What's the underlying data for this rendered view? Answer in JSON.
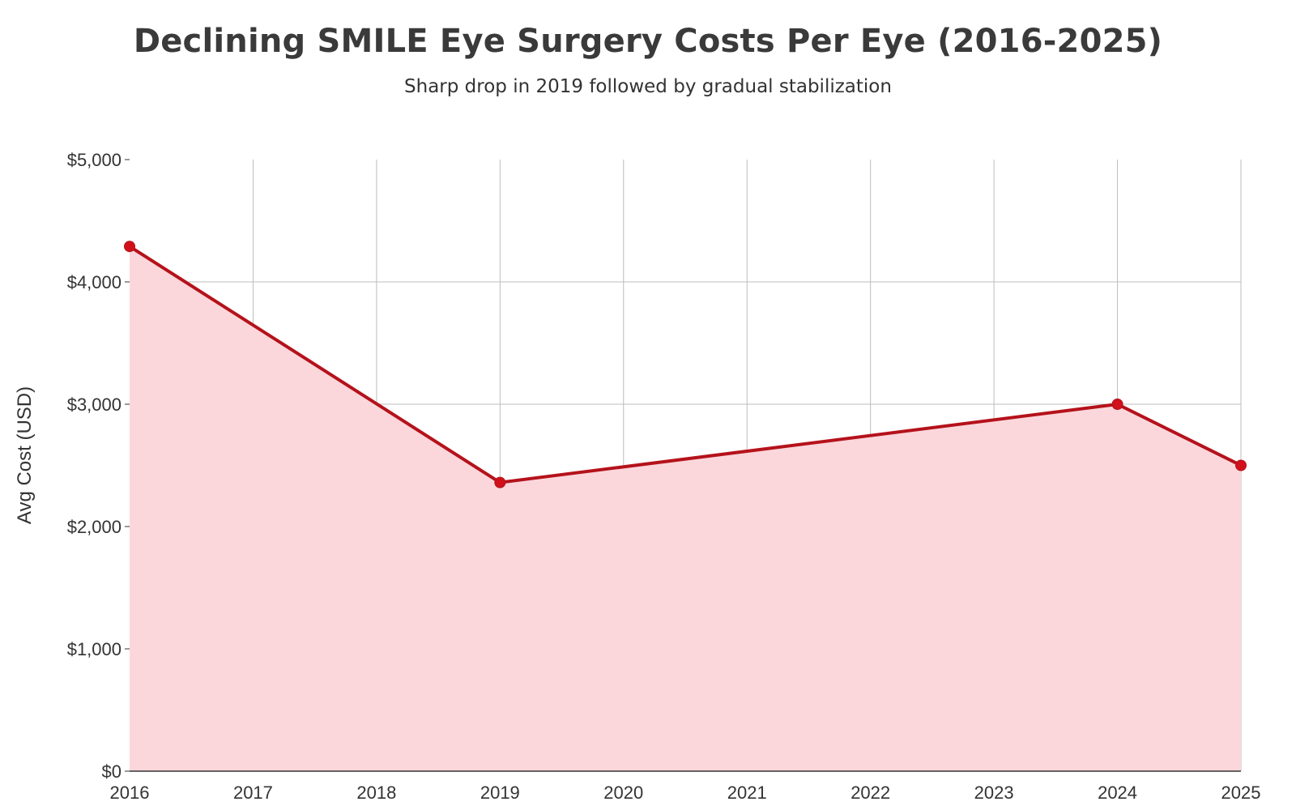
{
  "header": {
    "title": "Declining SMILE Eye Surgery Costs Per Eye (2016-2025)",
    "subtitle": "Sharp drop in 2019 followed by gradual stabilization"
  },
  "chart_data": {
    "type": "area",
    "title": "Declining SMILE Eye Surgery Costs Per Eye (2016-2025)",
    "subtitle": "Sharp drop in 2019 followed by gradual stabilization",
    "xlabel": "",
    "ylabel": "Avg Cost (USD)",
    "x": [
      2016,
      2017,
      2018,
      2019,
      2020,
      2021,
      2022,
      2023,
      2024,
      2025
    ],
    "x_tick_labels": [
      "2016",
      "2017",
      "2018",
      "2019",
      "2020",
      "2021",
      "2022",
      "2023",
      "2024",
      "2025"
    ],
    "y_ticks": [
      0,
      1000,
      2000,
      3000,
      4000,
      5000
    ],
    "y_tick_labels": [
      "$0",
      "$1,000",
      "$2,000",
      "$3,000",
      "$4,000",
      "$5,000"
    ],
    "ylim": [
      0,
      5000
    ],
    "xlim": [
      2016,
      2025
    ],
    "series": [
      {
        "points": [
          {
            "x": 2016,
            "y": 4290
          },
          {
            "x": 2019,
            "y": 2360
          },
          {
            "x": 2024,
            "y": 3000
          },
          {
            "x": 2025,
            "y": 2500
          }
        ]
      }
    ],
    "grid": true,
    "legend": "none",
    "colors": {
      "line": "#b5121b",
      "marker": "#d0101a",
      "fill": "#fbd7dc",
      "grid": "#bdbdbd",
      "axis": "#333333"
    }
  }
}
